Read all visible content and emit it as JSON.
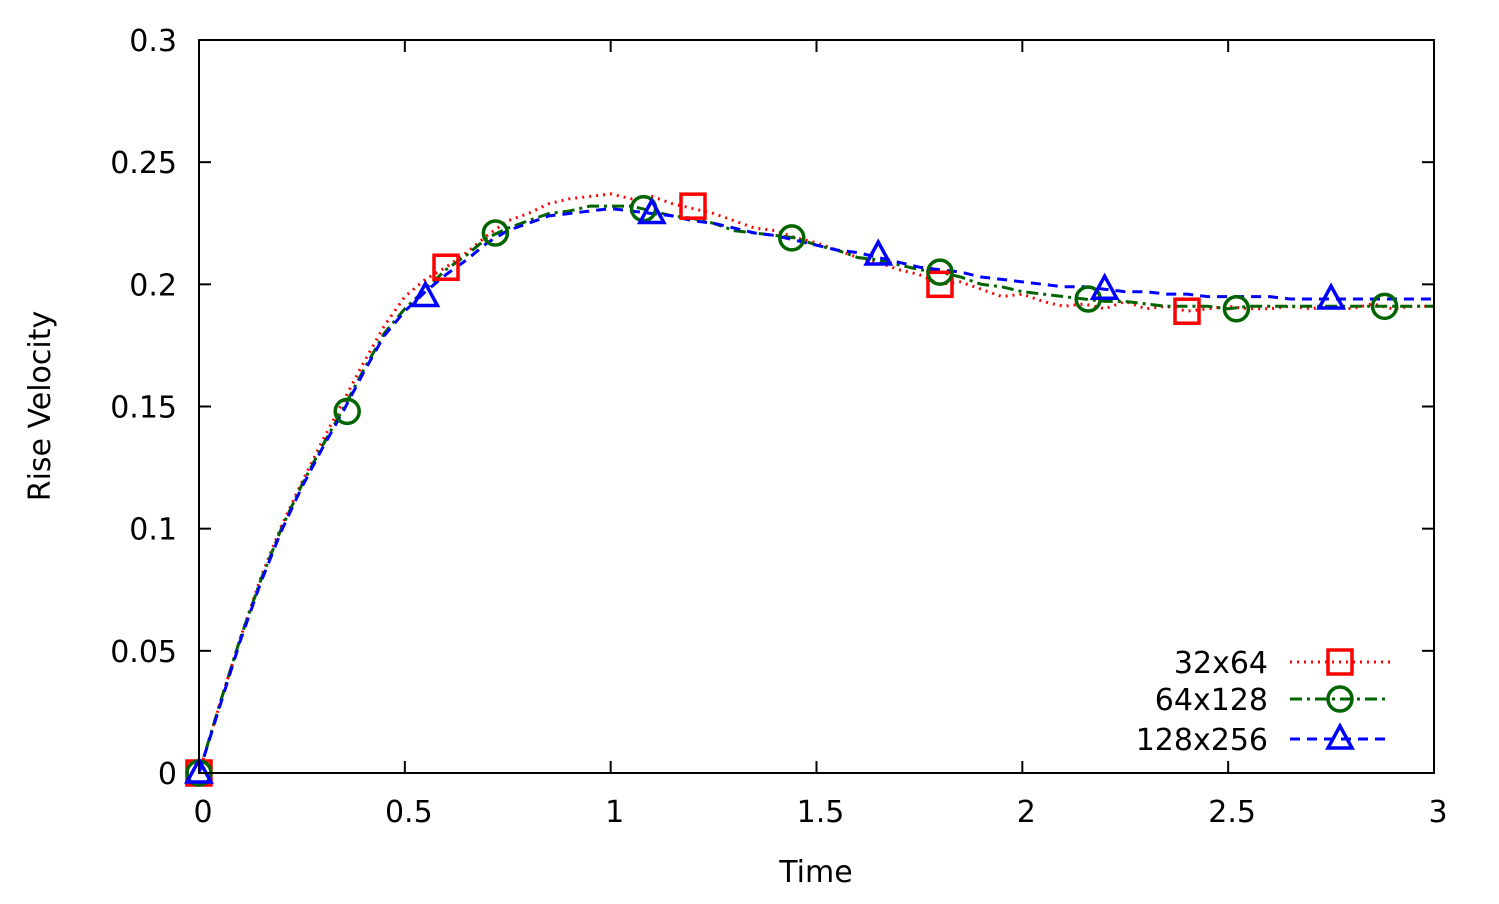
{
  "chart_data": {
    "type": "line",
    "title": "",
    "xlabel": "Time",
    "ylabel": "Rise Velocity",
    "xlim": [
      0,
      3
    ],
    "ylim": [
      0,
      0.3
    ],
    "x_ticks": [
      0,
      0.5,
      1,
      1.5,
      2,
      2.5,
      3
    ],
    "x_tick_labels": [
      "0",
      "0.5",
      "1",
      "1.5",
      "2",
      "2.5",
      "3"
    ],
    "y_ticks": [
      0,
      0.05,
      0.1,
      0.15,
      0.2,
      0.25,
      0.3
    ],
    "y_tick_labels": [
      "0",
      "0.05",
      "0.1",
      "0.15",
      "0.2",
      "0.25",
      "0.3"
    ],
    "grid": false,
    "legend_position": "bottom-right",
    "series": [
      {
        "name": "32x64",
        "color": "#ff0000",
        "line_style": "dotted",
        "marker": "square",
        "x": [
          0,
          0.05,
          0.1,
          0.15,
          0.2,
          0.25,
          0.3,
          0.35,
          0.4,
          0.45,
          0.5,
          0.55,
          0.6,
          0.65,
          0.7,
          0.75,
          0.8,
          0.85,
          0.9,
          0.95,
          1.0,
          1.05,
          1.1,
          1.15,
          1.2,
          1.25,
          1.3,
          1.35,
          1.4,
          1.45,
          1.5,
          1.55,
          1.6,
          1.65,
          1.7,
          1.75,
          1.8,
          1.85,
          1.9,
          1.95,
          2.0,
          2.05,
          2.1,
          2.15,
          2.2,
          2.25,
          2.3,
          2.35,
          2.4,
          2.45,
          2.5,
          2.55,
          2.6,
          2.65,
          2.7,
          2.75,
          2.8,
          2.85,
          2.9,
          2.95,
          3.0
        ],
        "y": [
          0,
          0.028,
          0.055,
          0.08,
          0.101,
          0.119,
          0.136,
          0.152,
          0.168,
          0.183,
          0.195,
          0.202,
          0.207,
          0.213,
          0.22,
          0.226,
          0.229,
          0.233,
          0.235,
          0.236,
          0.237,
          0.235,
          0.236,
          0.233,
          0.231,
          0.229,
          0.226,
          0.223,
          0.222,
          0.219,
          0.217,
          0.214,
          0.211,
          0.209,
          0.206,
          0.204,
          0.2,
          0.201,
          0.198,
          0.195,
          0.196,
          0.193,
          0.191,
          0.192,
          0.19,
          0.193,
          0.19,
          0.191,
          0.189,
          0.19,
          0.191,
          0.19,
          0.19,
          0.191,
          0.19,
          0.191,
          0.19,
          0.192,
          0.19,
          0.191,
          0.191
        ],
        "marker_x": [
          0,
          0.6,
          1.2,
          1.8,
          2.4
        ],
        "marker_y": [
          0,
          0.207,
          0.232,
          0.2,
          0.189
        ]
      },
      {
        "name": "64x128",
        "color": "#006400",
        "line_style": "dash-dot",
        "marker": "circle",
        "x": [
          0,
          0.05,
          0.1,
          0.15,
          0.2,
          0.25,
          0.3,
          0.35,
          0.4,
          0.45,
          0.5,
          0.55,
          0.6,
          0.65,
          0.7,
          0.75,
          0.8,
          0.85,
          0.9,
          0.95,
          1.0,
          1.05,
          1.1,
          1.15,
          1.2,
          1.25,
          1.3,
          1.35,
          1.4,
          1.45,
          1.5,
          1.55,
          1.6,
          1.65,
          1.7,
          1.75,
          1.8,
          1.85,
          1.9,
          1.95,
          2.0,
          2.05,
          2.1,
          2.15,
          2.2,
          2.25,
          2.3,
          2.35,
          2.4,
          2.45,
          2.5,
          2.55,
          2.6,
          2.65,
          2.7,
          2.75,
          2.8,
          2.85,
          2.9,
          2.95,
          3.0
        ],
        "y": [
          0,
          0.028,
          0.055,
          0.079,
          0.1,
          0.118,
          0.134,
          0.149,
          0.165,
          0.18,
          0.19,
          0.198,
          0.206,
          0.212,
          0.219,
          0.223,
          0.226,
          0.229,
          0.23,
          0.232,
          0.232,
          0.232,
          0.23,
          0.228,
          0.227,
          0.225,
          0.222,
          0.221,
          0.22,
          0.219,
          0.216,
          0.214,
          0.211,
          0.21,
          0.208,
          0.206,
          0.205,
          0.203,
          0.2,
          0.199,
          0.197,
          0.196,
          0.195,
          0.194,
          0.193,
          0.193,
          0.192,
          0.191,
          0.191,
          0.191,
          0.19,
          0.191,
          0.191,
          0.191,
          0.191,
          0.191,
          0.191,
          0.191,
          0.191,
          0.191,
          0.191
        ],
        "marker_x": [
          0,
          0.36,
          0.72,
          1.08,
          1.44,
          1.8,
          2.16,
          2.52,
          2.88
        ],
        "marker_y": [
          0,
          0.148,
          0.221,
          0.231,
          0.219,
          0.205,
          0.194,
          0.19,
          0.191
        ]
      },
      {
        "name": "128x256",
        "color": "#0000ff",
        "line_style": "dashed",
        "marker": "triangle",
        "x": [
          0,
          0.05,
          0.1,
          0.15,
          0.2,
          0.25,
          0.3,
          0.35,
          0.4,
          0.45,
          0.5,
          0.55,
          0.6,
          0.65,
          0.7,
          0.75,
          0.8,
          0.85,
          0.9,
          0.95,
          1.0,
          1.05,
          1.1,
          1.15,
          1.2,
          1.25,
          1.3,
          1.35,
          1.4,
          1.45,
          1.5,
          1.55,
          1.6,
          1.65,
          1.7,
          1.75,
          1.8,
          1.85,
          1.9,
          1.95,
          2.0,
          2.05,
          2.1,
          2.15,
          2.2,
          2.25,
          2.3,
          2.35,
          2.4,
          2.45,
          2.5,
          2.55,
          2.6,
          2.65,
          2.7,
          2.75,
          2.8,
          2.85,
          2.9,
          2.95,
          3.0
        ],
        "y": [
          0,
          0.027,
          0.054,
          0.078,
          0.099,
          0.117,
          0.133,
          0.148,
          0.164,
          0.179,
          0.189,
          0.197,
          0.204,
          0.21,
          0.217,
          0.222,
          0.225,
          0.228,
          0.229,
          0.23,
          0.231,
          0.23,
          0.229,
          0.228,
          0.226,
          0.225,
          0.223,
          0.221,
          0.22,
          0.218,
          0.216,
          0.214,
          0.213,
          0.211,
          0.209,
          0.207,
          0.206,
          0.205,
          0.203,
          0.202,
          0.201,
          0.2,
          0.199,
          0.199,
          0.198,
          0.197,
          0.197,
          0.196,
          0.196,
          0.195,
          0.195,
          0.195,
          0.195,
          0.194,
          0.194,
          0.194,
          0.194,
          0.194,
          0.194,
          0.194,
          0.194
        ],
        "marker_x": [
          0,
          0.55,
          1.1,
          1.65,
          2.2,
          2.75
        ],
        "marker_y": [
          0,
          0.195,
          0.229,
          0.212,
          0.198,
          0.194
        ]
      }
    ]
  }
}
